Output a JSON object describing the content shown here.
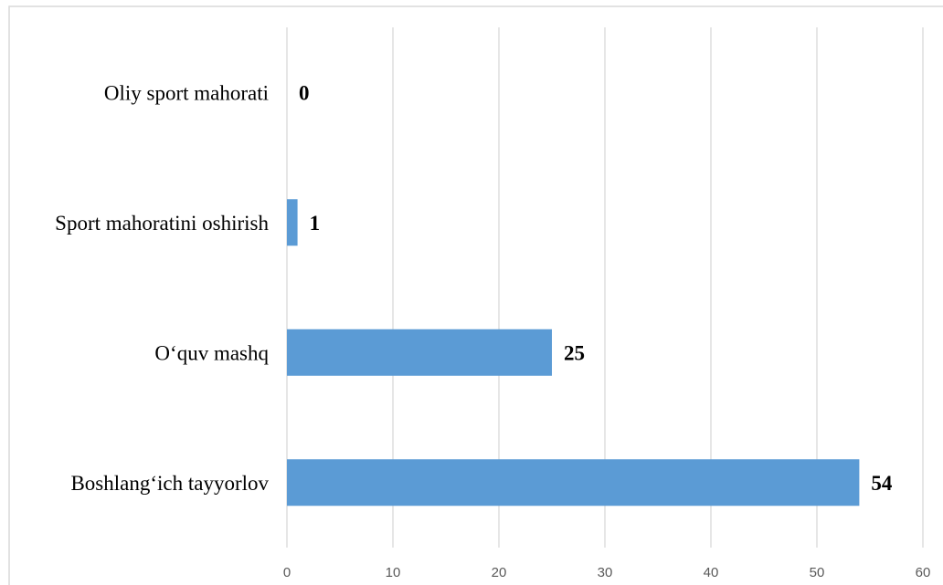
{
  "chart_data": {
    "type": "bar",
    "orientation": "horizontal",
    "categories": [
      "Oliy sport mahorati",
      "Sport mahoratini oshirish",
      "O‘quv mashq",
      "Boshlang‘ich tayyorlov"
    ],
    "values": [
      0,
      1,
      25,
      54
    ],
    "data_labels": [
      "0",
      "1",
      "25",
      "54"
    ],
    "xlim": [
      0,
      60
    ],
    "xticks": [
      0,
      10,
      20,
      30,
      40,
      50,
      60
    ],
    "xtick_labels": [
      "0",
      "10",
      "20",
      "30",
      "40",
      "50",
      "60"
    ],
    "grid": "vertical",
    "legend": "none",
    "colors": {
      "bar": "#5b9bd5",
      "grid": "#d9d9d9",
      "frame": "#d9d9d9",
      "tick_text": "#595959",
      "label_text": "#000000"
    }
  }
}
